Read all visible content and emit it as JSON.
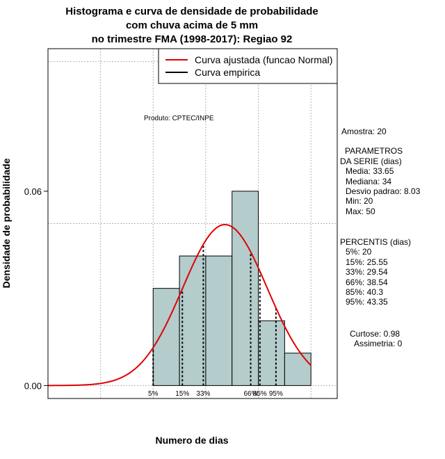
{
  "chart_data": {
    "type": "bar",
    "title_lines": [
      "Histograma e curva de densidade de probabilidade",
      "com chuva acima de 5 mm",
      "no trimestre FMA (1998-2017): Regiao 92"
    ],
    "xlabel": "Numero de dias",
    "ylabel": "Densidade de probabilidade",
    "xlim": [
      0,
      55
    ],
    "ylim": [
      -0.004,
      0.104
    ],
    "y_ticks": [
      0.0,
      0.06
    ],
    "y_tick_labels": [
      "0.00",
      "0.06"
    ],
    "grid": true,
    "legend": {
      "placement": "top-right",
      "entries": [
        {
          "label": "Curva ajustada (funcao Normal)",
          "color": "#e00000"
        },
        {
          "label": "Curva empirica",
          "color": "#000000"
        }
      ]
    },
    "histogram": {
      "bin_edges": [
        20,
        25,
        30,
        35,
        40,
        45,
        50
      ],
      "density": [
        0.03,
        0.04,
        0.04,
        0.06,
        0.02,
        0.01
      ],
      "fill": "#b4cccc"
    },
    "normal_curve": {
      "mean": 33.65,
      "sd": 8.03,
      "x_from": 0,
      "x_to": 50,
      "color": "#e00000"
    },
    "percentile_marks": [
      {
        "label": "5%",
        "x": 20
      },
      {
        "label": "15%",
        "x": 25.55
      },
      {
        "label": "33%",
        "x": 29.54
      },
      {
        "label": "66%",
        "x": 38.54
      },
      {
        "label": "85%",
        "x": 40.3
      },
      {
        "label": "95%",
        "x": 43.35
      }
    ],
    "annotation": "Produto: CPTEC/INPE"
  },
  "stats_panel": {
    "amostra": "Amostra: 20",
    "param_title": "PARAMETROS",
    "param_subtitle": "DA SERIE (dias)",
    "media": "Media: 33.65",
    "mediana": "Mediana: 34",
    "desvio": "Desvio padrao: 8.03",
    "min": "Min: 20",
    "max": "Max: 50",
    "perc_title": "PERCENTIS (dias)",
    "p5": "5%: 20",
    "p15": "15%: 25.55",
    "p33": "33%: 29.54",
    "p66": "66%: 38.54",
    "p85": "85%: 40.3",
    "p95": "95%: 43.35",
    "curtose": "Curtose: 0.98",
    "assimetria": "Assimetria: 0"
  }
}
